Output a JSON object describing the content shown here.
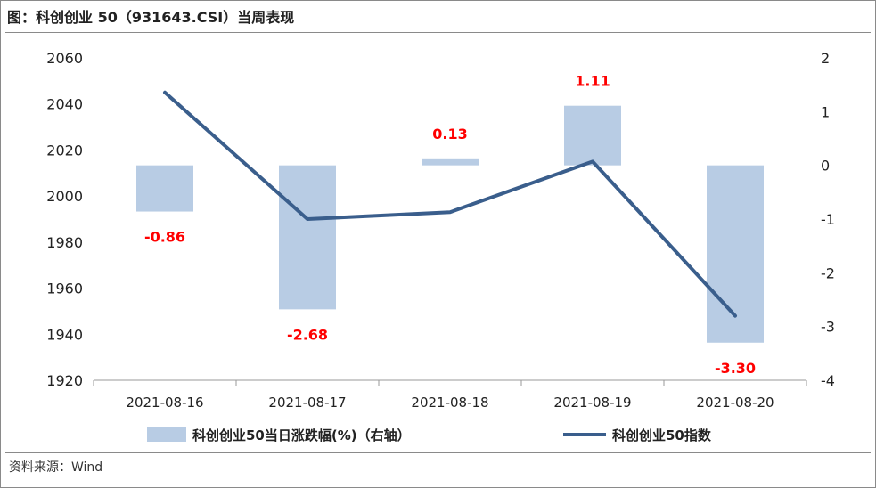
{
  "title": "图：科创创业 50（931643.CSI）当周表现",
  "source": "资料来源：Wind",
  "chart_data": {
    "type": "bar",
    "categories": [
      "2021-08-16",
      "2021-08-17",
      "2021-08-18",
      "2021-08-19",
      "2021-08-20"
    ],
    "series": [
      {
        "name": "科创创业50当日涨跌幅(%)（右轴）",
        "type": "bar",
        "axis": "right",
        "values": [
          -0.86,
          -2.68,
          0.13,
          1.11,
          -3.3
        ],
        "labels": [
          "-0.86",
          "-2.68",
          "0.13",
          "1.11",
          "-3.30"
        ],
        "color": "#b8cce4"
      },
      {
        "name": "科创创业50指数",
        "type": "line",
        "axis": "left",
        "values": [
          2045,
          1990,
          1993,
          2015,
          1948
        ],
        "color": "#3a5e8c"
      }
    ],
    "y_left": {
      "lim": [
        1920,
        2060
      ],
      "ticks": [
        "2060",
        "2040",
        "2020",
        "2000",
        "1980",
        "1960",
        "1940",
        "1920"
      ]
    },
    "y_right": {
      "lim": [
        -4,
        2
      ],
      "ticks": [
        "2",
        "1",
        "0",
        "-1",
        "-2",
        "-3",
        "-4"
      ]
    },
    "data_label_color": "#ff0000",
    "legend_position": "bottom",
    "grid": false
  }
}
